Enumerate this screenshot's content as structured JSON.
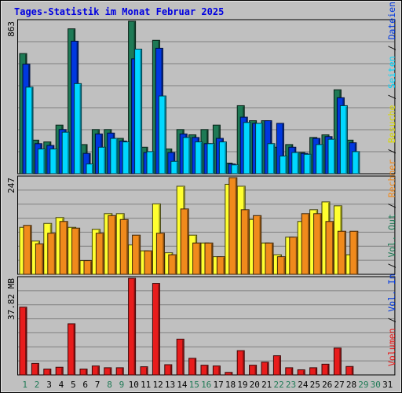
{
  "chart_data": {
    "type": "bar",
    "title": "Tages-Statistik im Monat Februar 2025",
    "x_ticks": [
      "1",
      "2",
      "3",
      "4",
      "5",
      "6",
      "7",
      "8",
      "9",
      "10",
      "11",
      "12",
      "13",
      "14",
      "15",
      "16",
      "17",
      "18",
      "19",
      "20",
      "21",
      "22",
      "23",
      "24",
      "25",
      "26",
      "27",
      "28",
      "29",
      "30",
      "31"
    ],
    "weekend_days": [
      1,
      2,
      8,
      9,
      15,
      16,
      22,
      23,
      29,
      30
    ],
    "days_with_data": 28,
    "panels": [
      {
        "name": "requests",
        "ylabel": "863",
        "ymax": 863,
        "series": [
          {
            "name": "Anfragen",
            "color": "#1e7a55",
            "values": [
              680,
              190,
              180,
              275,
              820,
              165,
              250,
              250,
              200,
              863,
              150,
              755,
              140,
              250,
              220,
              250,
              275,
              60,
              385,
              300,
              300,
              150,
              165,
              120,
              205,
              220,
              475,
              190
            ]
          },
          {
            "name": "Dateien",
            "color": "#0038e0",
            "values": [
              620,
              170,
              160,
              250,
              750,
              115,
              225,
              230,
              185,
              650,
              120,
              710,
              120,
              225,
              205,
              170,
              200,
              55,
              320,
              285,
              300,
              285,
              150,
              115,
              200,
              210,
              430,
              175
            ]
          },
          {
            "name": "Seiten",
            "color": "#00d8ff",
            "values": [
              490,
              140,
              140,
              235,
              510,
              55,
              150,
              200,
              180,
              705,
              125,
              440,
              70,
              205,
              180,
              170,
              180,
              50,
              290,
              285,
              170,
              100,
              120,
              110,
              165,
              195,
              385,
              125
            ]
          }
        ]
      },
      {
        "name": "visits",
        "ylabel": "247",
        "ymax": 247,
        "series": [
          {
            "name": "Besuche",
            "color": "#ffff30",
            "values": [
              120,
              85,
              130,
              145,
              120,
              35,
              115,
              155,
              155,
              75,
              60,
              180,
              55,
              225,
              100,
              80,
              45,
              230,
              225,
              140,
              80,
              50,
              95,
              135,
              165,
              185,
              175,
              50
            ]
          },
          {
            "name": "Rechner",
            "color": "#f08a1c",
            "values": [
              125,
              78,
              105,
              135,
              118,
              35,
              105,
              150,
              140,
              100,
              60,
              105,
              50,
              167,
              80,
              80,
              45,
              247,
              165,
              150,
              80,
              45,
              95,
              155,
              155,
              135,
              110,
              110
            ]
          }
        ]
      },
      {
        "name": "volume",
        "ylabel": "37.82 MB",
        "ymax": 37.82,
        "series": [
          {
            "name": "Volumen",
            "color": "#e81c1c",
            "values": [
              26.5,
              4.5,
              2.3,
              3.0,
              20.0,
              2.3,
              3.5,
              2.8,
              2.8,
              37.8,
              3.2,
              35.8,
              4.0,
              14.0,
              6.5,
              3.8,
              3.5,
              1.0,
              9.5,
              3.8,
              5.0,
              7.5,
              2.8,
              2.0,
              2.8,
              4.2,
              10.5,
              3.3
            ]
          }
        ]
      }
    ],
    "right_legend": [
      {
        "label": "Anfragen",
        "color": "#1e7a55"
      },
      {
        "label": "Dateien",
        "color": "#0038e0"
      },
      {
        "label": "Seiten",
        "color": "#00d8ff"
      },
      {
        "label": "Besuche",
        "color": "#d8d800"
      },
      {
        "label": "Rechner",
        "color": "#f08a1c"
      },
      {
        "label": "Vol. Out",
        "color": "#1e7a55"
      },
      {
        "label": "Vol. In",
        "color": "#0038e0"
      },
      {
        "label": "Volumen",
        "color": "#e81c1c"
      }
    ],
    "legend_separator": " / ",
    "grid": true
  },
  "colors": {
    "background": "#c0c0c0",
    "title": "#0000e0",
    "axis_text": "#000000",
    "weekend_text": "#1e7a55",
    "gridline": "#808080"
  }
}
